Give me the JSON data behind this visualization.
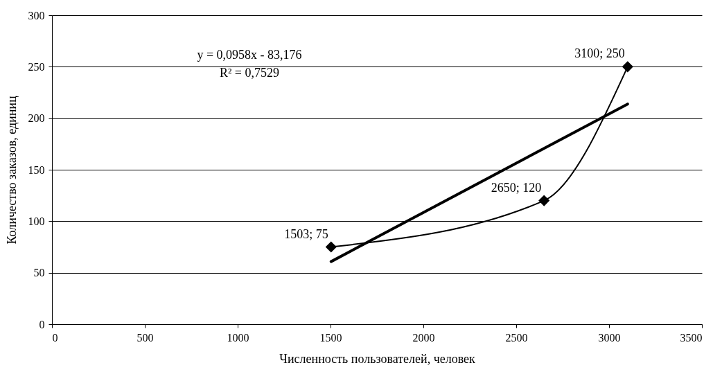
{
  "chart_data": {
    "type": "line",
    "xlabel": "Численность пользователей, человек",
    "ylabel": "Количество заказов, единиц",
    "xlim": [
      0,
      3500
    ],
    "xticks": [
      0,
      500,
      1000,
      1500,
      2000,
      2500,
      3000,
      3500
    ],
    "ylim": [
      0,
      300
    ],
    "yticks": [
      0,
      50,
      100,
      150,
      200,
      250,
      300
    ],
    "grid": "y",
    "annotations": [
      "y = 0,0958x - 83,176",
      "R² = 0,7529"
    ],
    "series": [
      {
        "color": "#000000",
        "marker": "diamond",
        "x": [
          1503,
          2650,
          3100
        ],
        "values": [
          75,
          120,
          250
        ],
        "value_labels": [
          "1503; 75",
          "2650; 120",
          "3100; 250"
        ]
      },
      {
        "color": "#000000",
        "marker": "none",
        "x": [
          1503,
          3100
        ],
        "values": [
          60.8,
          213.8
        ]
      }
    ]
  }
}
